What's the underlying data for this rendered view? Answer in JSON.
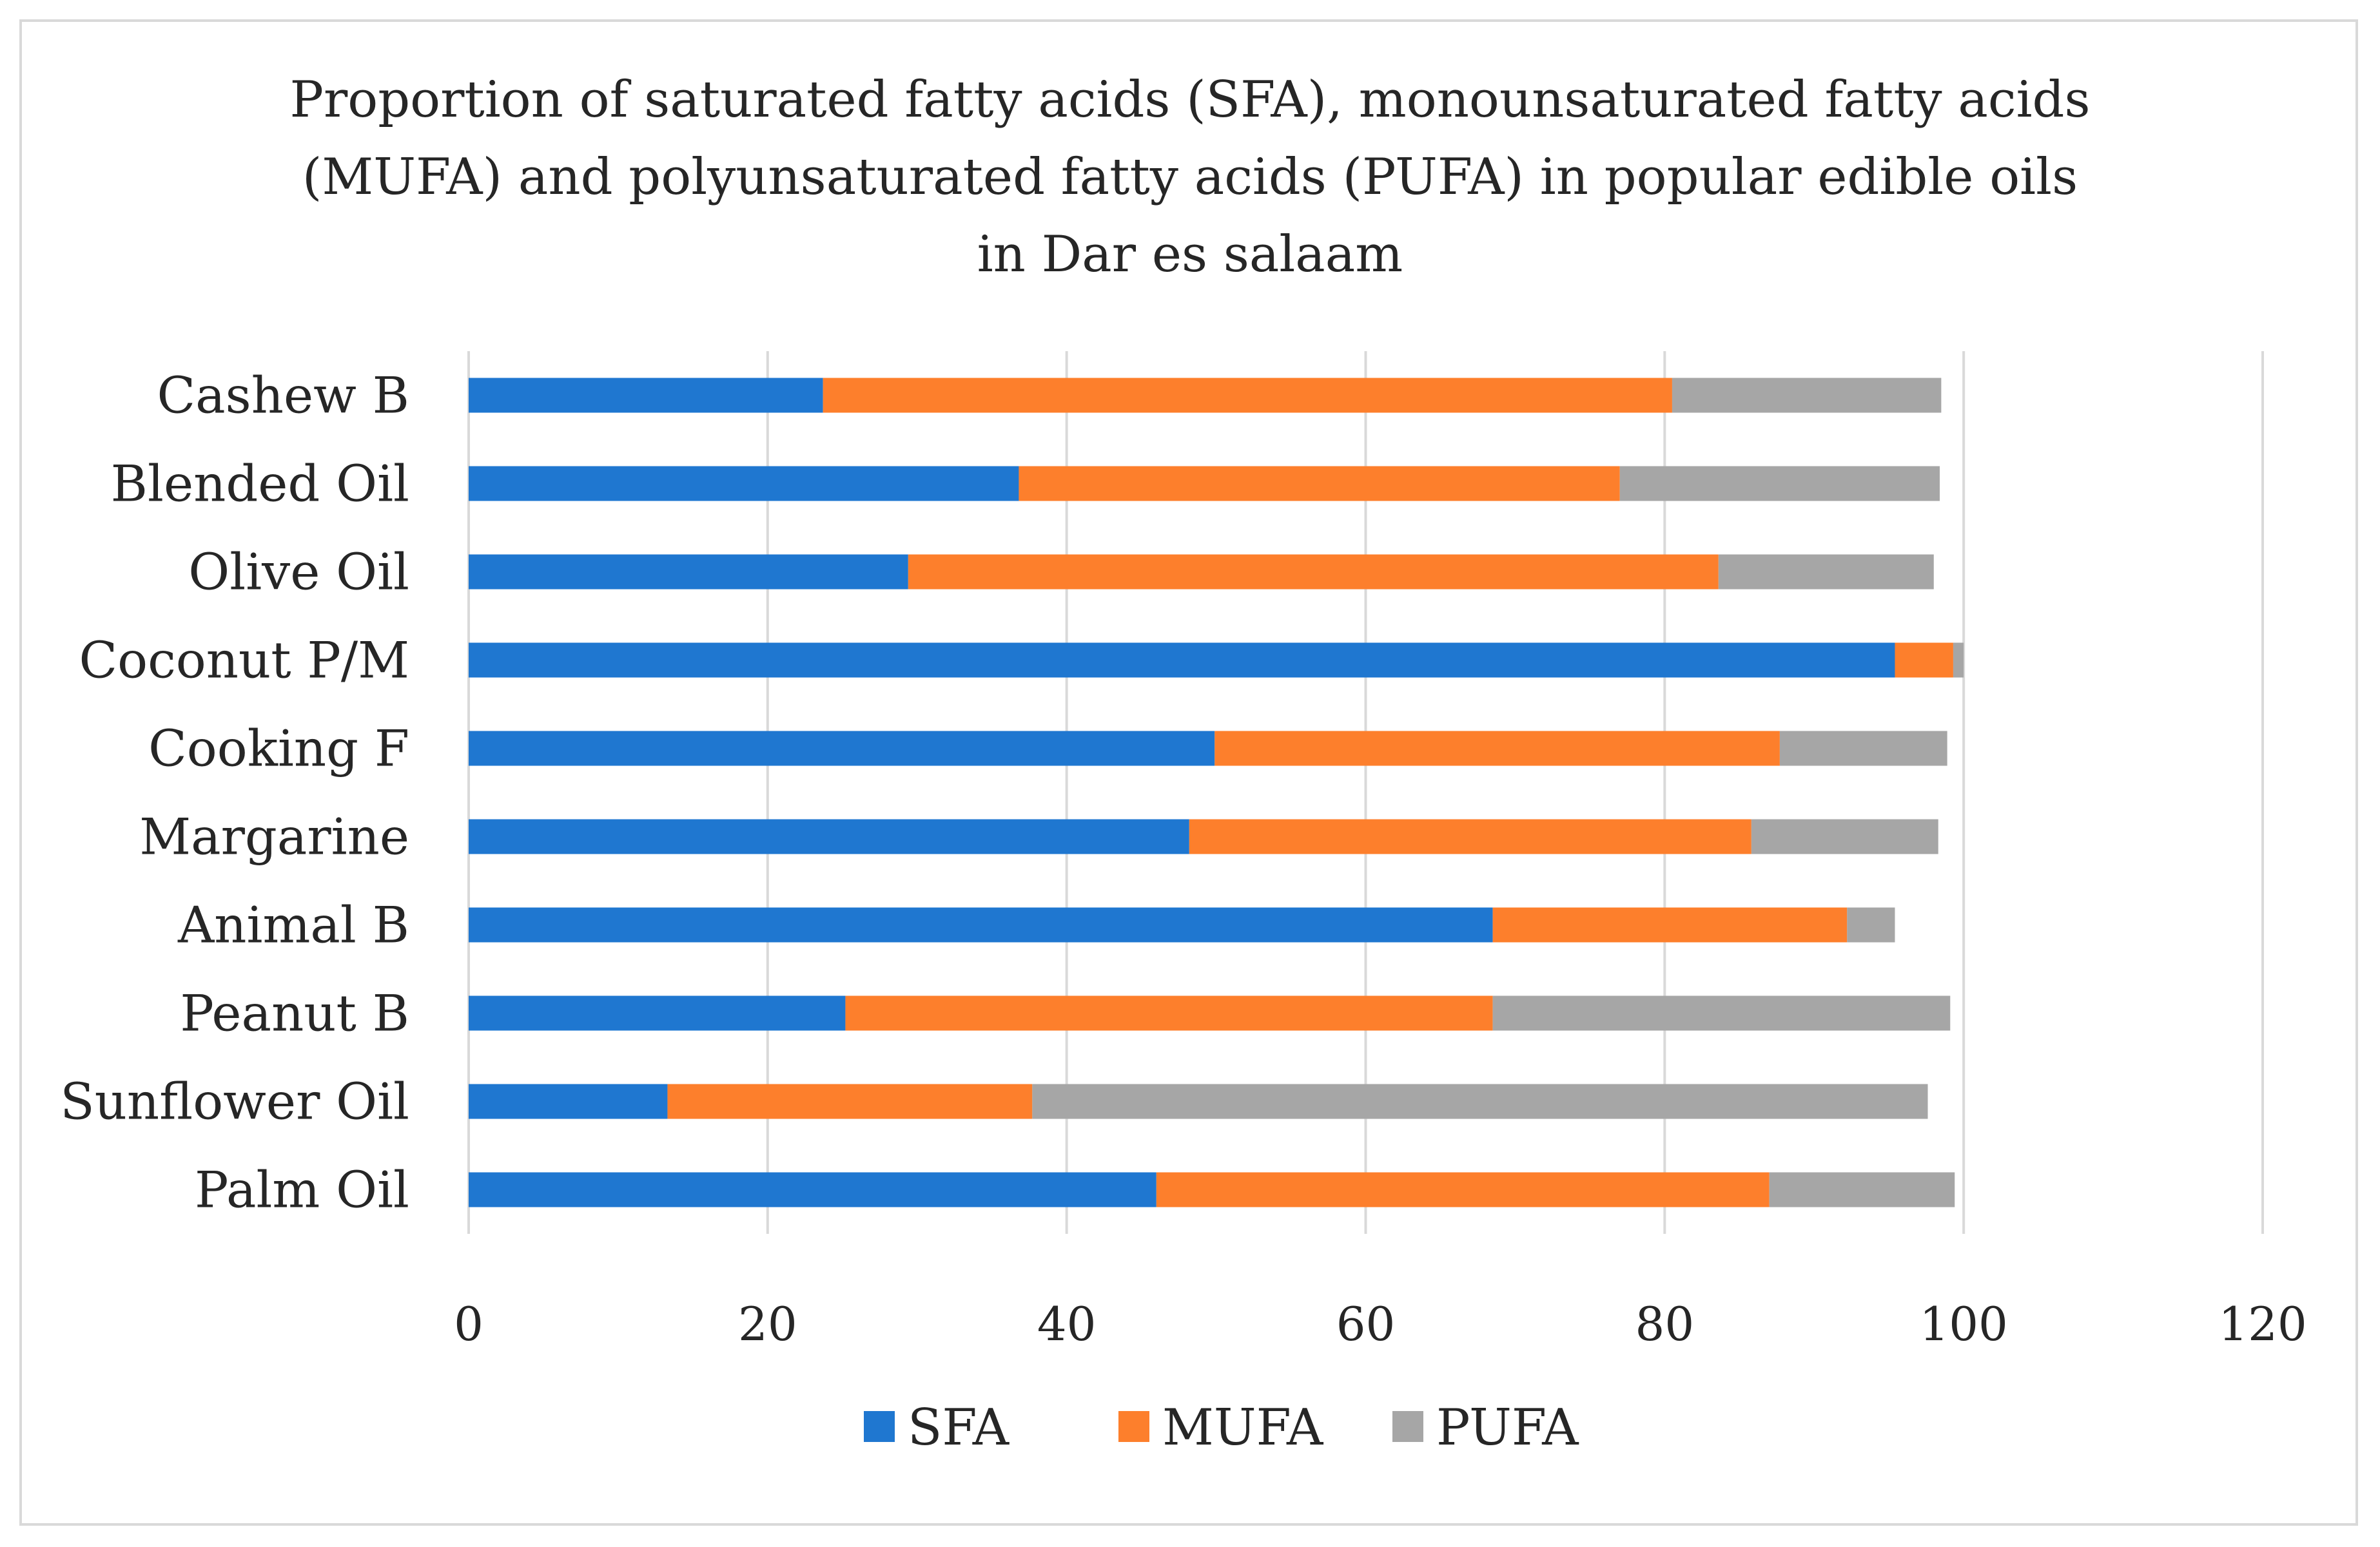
{
  "chart_data": {
    "type": "bar",
    "orientation": "horizontal",
    "stacked": true,
    "title_lines": [
      "Proportion of saturated fatty acids (SFA), monounsaturated fatty acids",
      "(MUFA) and polyunsaturated fatty acids (PUFA) in popular edible oils",
      "in Dar es salaam"
    ],
    "categories": [
      "Cashew B",
      "Blended Oil",
      "Olive Oil",
      "Coconut P/M",
      "Cooking F",
      "Margarine",
      "Animal B",
      "Peanut B",
      "Sunflower Oil",
      "Palm Oil"
    ],
    "series": [
      {
        "name": "SFA",
        "color": "#1f77d0",
        "values": [
          23.7,
          36.8,
          29.4,
          95.4,
          49.9,
          48.2,
          68.5,
          25.2,
          13.3,
          46.0
        ]
      },
      {
        "name": "MUFA",
        "color": "#fd7f2c",
        "values": [
          56.8,
          40.2,
          54.2,
          3.9,
          37.8,
          37.6,
          23.7,
          43.3,
          24.4,
          41.0
        ]
      },
      {
        "name": "PUFA",
        "color": "#a6a6a6",
        "values": [
          18.0,
          21.4,
          14.4,
          0.7,
          11.2,
          12.5,
          3.2,
          30.6,
          59.9,
          12.4
        ]
      }
    ],
    "xlim": [
      0,
      120
    ],
    "xticks": [
      "0",
      "20",
      "40",
      "60",
      "80",
      "100",
      "120"
    ],
    "grid": true,
    "legend_position": "bottom"
  }
}
